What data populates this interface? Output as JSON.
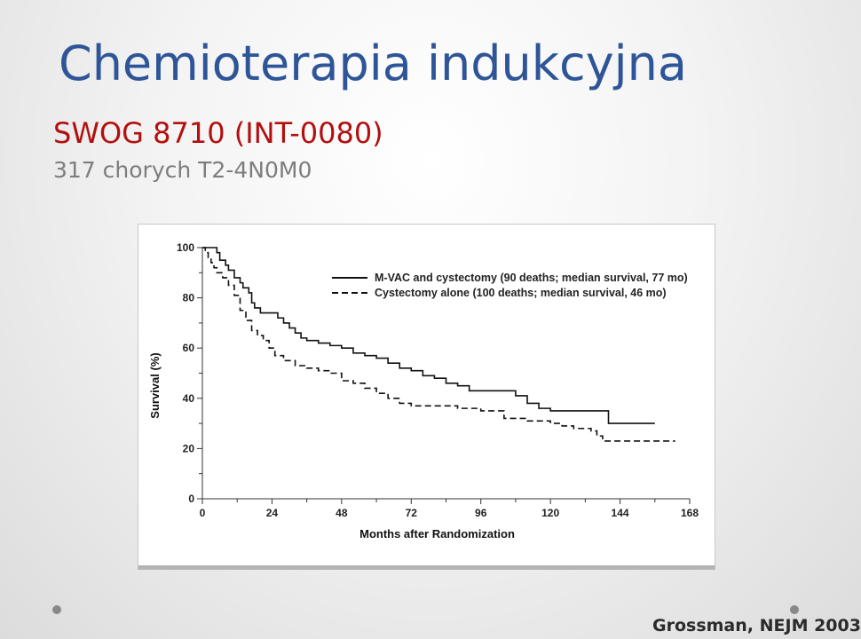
{
  "slide": {
    "title": "Chemioterapia indukcyjna",
    "subtitle": "SWOG 8710 (INT-0080)",
    "subline": "317 chorych T2-4N0M0",
    "citation": "Grossman, NEJM 2003",
    "title_color": "#2e5597",
    "subtitle_color": "#b30f0f"
  },
  "chart_data": {
    "type": "line",
    "xlabel": "Months after Randomization",
    "ylabel": "Survival (%)",
    "xlim": [
      0,
      168
    ],
    "ylim": [
      0,
      100
    ],
    "xticks": [
      0,
      24,
      48,
      72,
      96,
      120,
      144,
      168
    ],
    "yticks": [
      0,
      20,
      40,
      60,
      80,
      100
    ],
    "legend_position": "top-right",
    "series": [
      {
        "name": "M-VAC and cystectomy (90 deaths; median survival, 77 mo)",
        "style": "solid",
        "points": [
          [
            0,
            100
          ],
          [
            4,
            100
          ],
          [
            5,
            98
          ],
          [
            6,
            95
          ],
          [
            8,
            93
          ],
          [
            9,
            91
          ],
          [
            11,
            88
          ],
          [
            13,
            86
          ],
          [
            14,
            84
          ],
          [
            16,
            82
          ],
          [
            17,
            78
          ],
          [
            18,
            76
          ],
          [
            20,
            74
          ],
          [
            22,
            74
          ],
          [
            24,
            74
          ],
          [
            26,
            72
          ],
          [
            28,
            70
          ],
          [
            30,
            68
          ],
          [
            32,
            66
          ],
          [
            34,
            64
          ],
          [
            36,
            63
          ],
          [
            40,
            62
          ],
          [
            44,
            61
          ],
          [
            48,
            60
          ],
          [
            52,
            58
          ],
          [
            56,
            57
          ],
          [
            60,
            56
          ],
          [
            64,
            54
          ],
          [
            68,
            52
          ],
          [
            72,
            51
          ],
          [
            76,
            49
          ],
          [
            80,
            48
          ],
          [
            84,
            46
          ],
          [
            88,
            45
          ],
          [
            92,
            43
          ],
          [
            100,
            43
          ],
          [
            104,
            43
          ],
          [
            108,
            41
          ],
          [
            112,
            38
          ],
          [
            116,
            36
          ],
          [
            120,
            35
          ],
          [
            128,
            35
          ],
          [
            132,
            35
          ],
          [
            140,
            35
          ],
          [
            140,
            30
          ],
          [
            156,
            30
          ]
        ]
      },
      {
        "name": "Cystectomy alone (100 deaths; median survival, 46 mo)",
        "style": "dashed",
        "points": [
          [
            0,
            100
          ],
          [
            1,
            98
          ],
          [
            2,
            96
          ],
          [
            3,
            94
          ],
          [
            4,
            92
          ],
          [
            5,
            90
          ],
          [
            7,
            88
          ],
          [
            9,
            85
          ],
          [
            11,
            81
          ],
          [
            13,
            75
          ],
          [
            15,
            71
          ],
          [
            17,
            67
          ],
          [
            19,
            65
          ],
          [
            21,
            63
          ],
          [
            23,
            60
          ],
          [
            25,
            57
          ],
          [
            28,
            55
          ],
          [
            32,
            53
          ],
          [
            36,
            52
          ],
          [
            40,
            51
          ],
          [
            44,
            50
          ],
          [
            48,
            47
          ],
          [
            52,
            46
          ],
          [
            56,
            44
          ],
          [
            60,
            42
          ],
          [
            64,
            40
          ],
          [
            68,
            38
          ],
          [
            72,
            37
          ],
          [
            80,
            37
          ],
          [
            88,
            36
          ],
          [
            96,
            35
          ],
          [
            104,
            32
          ],
          [
            112,
            31
          ],
          [
            120,
            30
          ],
          [
            124,
            29
          ],
          [
            128,
            28
          ],
          [
            134,
            27
          ],
          [
            136,
            25
          ],
          [
            138,
            25
          ],
          [
            138,
            23
          ],
          [
            150,
            23
          ],
          [
            163,
            23
          ]
        ]
      }
    ]
  }
}
